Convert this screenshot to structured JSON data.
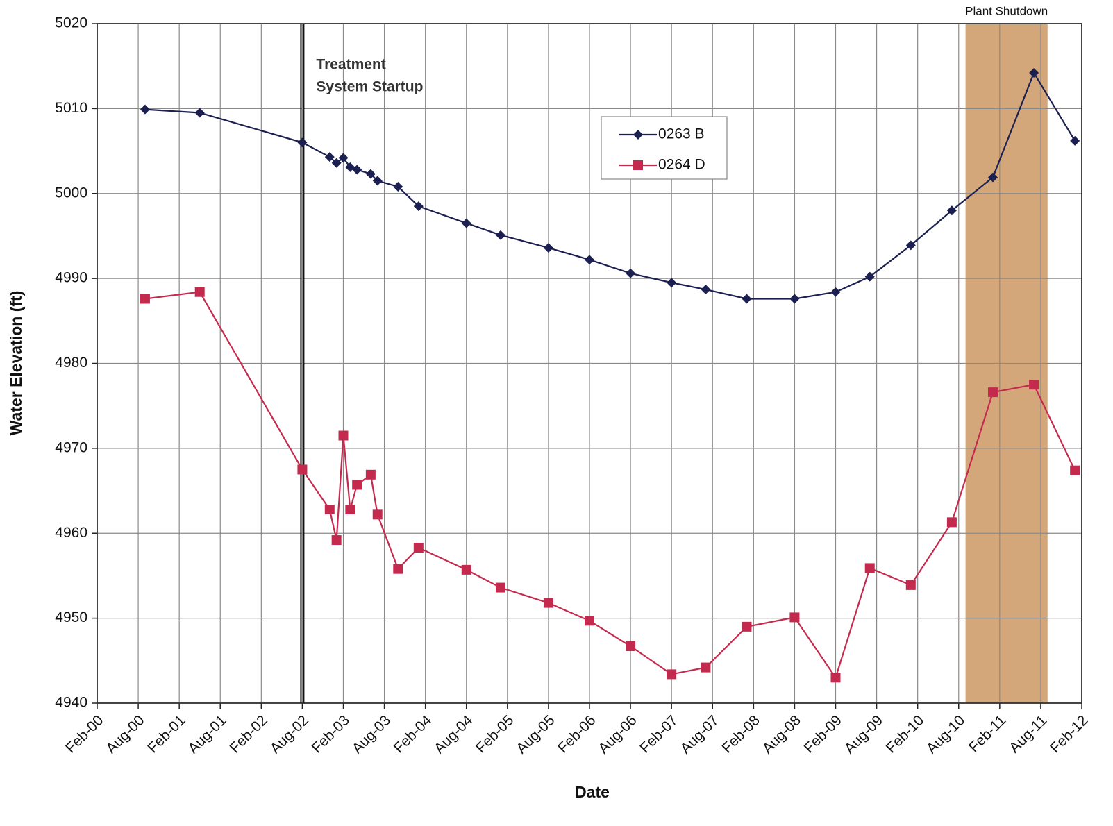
{
  "chart_data": {
    "type": "line",
    "x_label": "Date",
    "y_label": "Water Elevation (ft)",
    "xlim": [
      "Feb-00",
      "Feb-12"
    ],
    "xticks": [
      "Feb-00",
      "Aug-00",
      "Feb-01",
      "Aug-01",
      "Feb-02",
      "Aug-02",
      "Feb-03",
      "Aug-03",
      "Feb-04",
      "Aug-04",
      "Feb-05",
      "Aug-05",
      "Feb-06",
      "Aug-06",
      "Feb-07",
      "Aug-07",
      "Feb-08",
      "Aug-08",
      "Feb-09",
      "Aug-09",
      "Feb-10",
      "Aug-10",
      "Feb-11",
      "Aug-11",
      "Feb-12"
    ],
    "ylim": [
      4940,
      5020
    ],
    "yticks": [
      4940,
      4950,
      4960,
      4970,
      4980,
      4990,
      5000,
      5010,
      5020
    ],
    "grid": true,
    "legend": "top",
    "x": [
      "Sep-00",
      "May-01",
      "Aug-02",
      "Dec-02",
      "Jan-03",
      "Feb-03",
      "Mar-03",
      "Apr-03",
      "Jun-03",
      "Jul-03",
      "Oct-03",
      "Jan-04",
      "Aug-04",
      "Jan-05",
      "Aug-05",
      "Feb-06",
      "Aug-06",
      "Feb-07",
      "Jul-07",
      "Jan-08",
      "Aug-08",
      "Feb-09",
      "Jul-09",
      "Jan-10",
      "Jul-10",
      "Jan-11",
      "Jul-11",
      "Jan-12"
    ],
    "series": [
      {
        "name": "0263 B",
        "color": "#1b2050",
        "marker": "diamond",
        "values": [
          5009.9,
          5009.5,
          5006.0,
          5004.3,
          5003.6,
          5004.2,
          5003.1,
          5002.8,
          5002.3,
          5001.5,
          5000.8,
          4998.5,
          4996.5,
          4995.1,
          4993.6,
          4992.2,
          4990.6,
          4989.5,
          4988.7,
          4987.6,
          4987.6,
          4988.4,
          4990.2,
          4993.9,
          4998.0,
          5001.9,
          5014.2,
          5006.2
        ]
      },
      {
        "name": "0264 D",
        "color": "#c42a4e",
        "marker": "square",
        "values": [
          4987.6,
          4988.4,
          4967.5,
          4962.8,
          4959.2,
          4971.5,
          4962.8,
          4965.7,
          4966.9,
          4962.2,
          4955.8,
          4958.3,
          4955.7,
          4953.6,
          4951.8,
          4949.7,
          4946.7,
          4943.4,
          4944.2,
          4949.0,
          4950.1,
          4943.0,
          4955.9,
          4953.9,
          4961.3,
          4976.6,
          4977.5,
          4967.4
        ]
      }
    ],
    "annotations": {
      "startup": {
        "lines": [
          "Treatment",
          "System Startup"
        ],
        "x": "Aug-02"
      },
      "shutdown": {
        "text": "Plant Shutdown",
        "from": "Sep-10",
        "to": "Sep-11",
        "color": "#d4a77a"
      }
    }
  }
}
